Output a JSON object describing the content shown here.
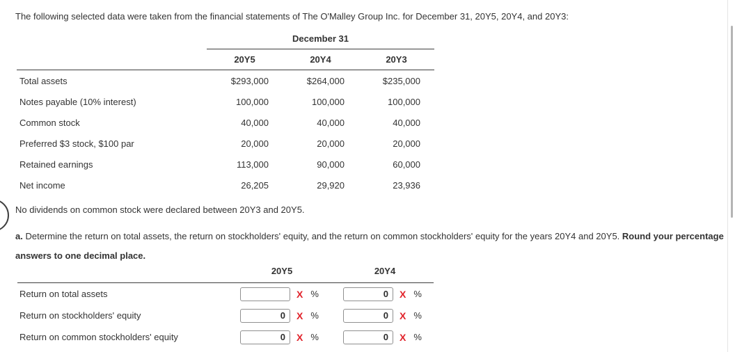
{
  "page": {
    "intro": "The following selected data were taken from the financial statements of The O'Malley Group Inc. for December 31, 20Y5, 20Y4, and 20Y3:",
    "note": "No dividends on common stock were declared between 20Y3 and 20Y5.",
    "question_label": "a.",
    "question_text": "Determine the return on total assets, the return on stockholders' equity, and the return on common stockholders' equity for the years 20Y4 and 20Y5.",
    "question_bold": "Round your percentage answers to one decimal place."
  },
  "data_table": {
    "group_header": "December 31",
    "columns": [
      "20Y5",
      "20Y4",
      "20Y3"
    ],
    "rows": [
      {
        "label": "Total assets",
        "values": [
          "$293,000",
          "$264,000",
          "$235,000"
        ]
      },
      {
        "label": "Notes payable (10% interest)",
        "values": [
          "100,000",
          "100,000",
          "100,000"
        ]
      },
      {
        "label": "Common stock",
        "values": [
          "40,000",
          "40,000",
          "40,000"
        ]
      },
      {
        "label": "Preferred $3 stock, $100 par",
        "values": [
          "20,000",
          "20,000",
          "20,000"
        ]
      },
      {
        "label": "Retained earnings",
        "values": [
          "113,000",
          "90,000",
          "60,000"
        ]
      },
      {
        "label": "Net income",
        "values": [
          "26,205",
          "29,920",
          "23,936"
        ]
      }
    ]
  },
  "answer_table": {
    "columns": [
      "20Y5",
      "20Y4"
    ],
    "unit": "%",
    "incorrect_mark": "X",
    "rows": [
      {
        "label": "Return on total assets",
        "inputs": [
          "",
          "0"
        ]
      },
      {
        "label": "Return on stockholders' equity",
        "inputs": [
          "0",
          "0"
        ]
      },
      {
        "label": "Return on common stockholders' equity",
        "inputs": [
          "0",
          "0"
        ]
      }
    ]
  },
  "colors": {
    "text": "#333333",
    "incorrect_mark": "#e1232b",
    "table_line": "#3d3d3d",
    "input_border": "#909090"
  }
}
